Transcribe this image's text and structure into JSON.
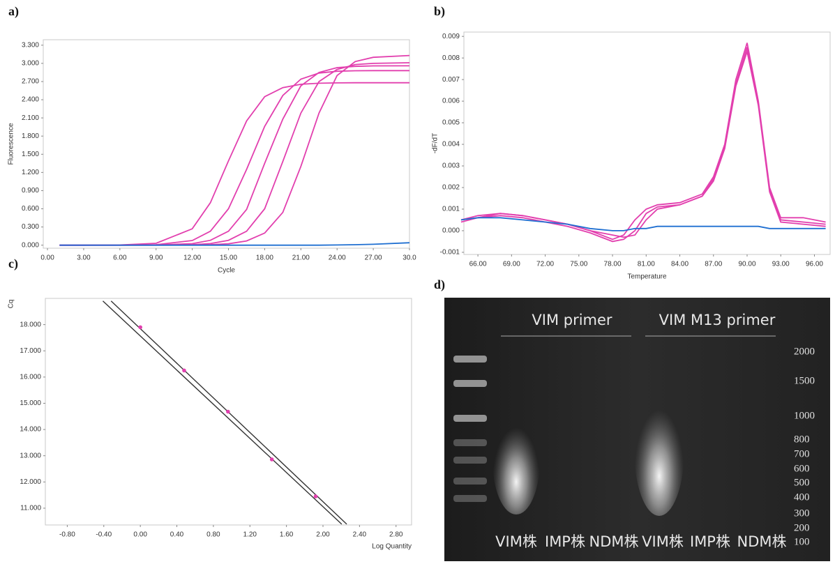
{
  "chart_data": [
    {
      "type": "line",
      "panel_label": "a)",
      "xlabel": "Cycle",
      "ylabel": "Fluorescence",
      "x": [
        1,
        3,
        6,
        9,
        12,
        13.5,
        15,
        16.5,
        18,
        19.5,
        21,
        22.5,
        24,
        25.5,
        27,
        30
      ],
      "series": [
        {
          "color": "#e23fae",
          "values": [
            0,
            0,
            0.003,
            0.03,
            0.27,
            0.7,
            1.39,
            2.05,
            2.45,
            2.6,
            2.655,
            2.672,
            2.678,
            2.68,
            2.68,
            2.68
          ]
        },
        {
          "color": "#e23fae",
          "values": [
            0,
            0,
            0.001,
            0.008,
            0.077,
            0.23,
            0.6,
            1.25,
            1.96,
            2.47,
            2.74,
            2.84,
            2.87,
            2.878,
            2.88,
            2.88
          ]
        },
        {
          "color": "#e23fae",
          "values": [
            0,
            0,
            0,
            0.003,
            0.025,
            0.08,
            0.23,
            0.59,
            1.35,
            2.08,
            2.63,
            2.85,
            2.93,
            2.95,
            2.958,
            2.96
          ]
        },
        {
          "color": "#e23fae",
          "values": [
            0,
            0,
            0,
            0.001,
            0.008,
            0.026,
            0.08,
            0.23,
            0.6,
            1.38,
            2.18,
            2.7,
            2.9,
            2.98,
            3.0,
            3.01
          ]
        },
        {
          "color": "#e23fae",
          "values": [
            0,
            0,
            0,
            0,
            0.002,
            0.007,
            0.022,
            0.07,
            0.2,
            0.54,
            1.3,
            2.18,
            2.8,
            3.03,
            3.1,
            3.13
          ]
        },
        {
          "color": "#1f6fd1",
          "values": [
            0,
            0,
            0,
            0,
            0,
            0,
            0,
            0,
            0,
            0,
            0,
            0,
            0.003,
            0.008,
            0.015,
            0.04
          ]
        }
      ],
      "xlim": [
        -0.35,
        30
      ],
      "ylim": [
        -0.05,
        3.39
      ],
      "xticks": [
        {
          "value": 0,
          "label": "0.00"
        },
        {
          "value": 3,
          "label": "3.00"
        },
        {
          "value": 6,
          "label": "6.00"
        },
        {
          "value": 9,
          "label": "9.00"
        },
        {
          "value": 12,
          "label": "12.00"
        },
        {
          "value": 15,
          "label": "15.00"
        },
        {
          "value": 18,
          "label": "18.00"
        },
        {
          "value": 21,
          "label": "21.00"
        },
        {
          "value": 24,
          "label": "24.00"
        },
        {
          "value": 27,
          "label": "27.00"
        },
        {
          "value": 30,
          "label": "30.0"
        }
      ],
      "yticks": [
        {
          "value": 0,
          "label": "0.000"
        },
        {
          "value": 0.3,
          "label": "0.300"
        },
        {
          "value": 0.6,
          "label": "0.600"
        },
        {
          "value": 0.9,
          "label": "0.900"
        },
        {
          "value": 1.2,
          "label": "1.200"
        },
        {
          "value": 1.5,
          "label": "1.500"
        },
        {
          "value": 1.8,
          "label": "1.800"
        },
        {
          "value": 2.1,
          "label": "2.100"
        },
        {
          "value": 2.4,
          "label": "2.400"
        },
        {
          "value": 2.7,
          "label": "2.700"
        },
        {
          "value": 3.0,
          "label": "3.000"
        },
        {
          "value": 3.3,
          "label": "3.300"
        }
      ]
    },
    {
      "type": "line",
      "panel_label": "b)",
      "xlabel": "Temperature",
      "ylabel": "-dF/dT",
      "x": [
        64.5,
        66,
        68,
        70,
        72,
        74,
        76,
        78,
        79,
        80,
        81,
        82,
        84,
        86,
        87,
        88,
        89,
        90,
        91,
        92,
        93,
        95,
        97
      ],
      "series": [
        {
          "color": "#e23fae",
          "values": [
            0.0005,
            0.0006,
            0.0008,
            0.0007,
            0.0005,
            0.0003,
            0.0,
            -0.0004,
            -0.0002,
            0.0005,
            0.001,
            0.0012,
            0.0013,
            0.0017,
            0.0025,
            0.004,
            0.007,
            0.0087,
            0.006,
            0.002,
            0.0006,
            0.0006,
            0.0004
          ]
        },
        {
          "color": "#e23fae",
          "values": [
            0.0004,
            0.0006,
            0.0007,
            0.0006,
            0.0004,
            0.0002,
            -0.0001,
            -0.0005,
            -0.0004,
            0.0,
            0.0008,
            0.0011,
            0.0012,
            0.0016,
            0.0023,
            0.0038,
            0.0067,
            0.0083,
            0.0058,
            0.0018,
            0.0004,
            0.0003,
            0.0002
          ]
        },
        {
          "color": "#e23fae",
          "values": [
            0.0005,
            0.0007,
            0.0008,
            0.0007,
            0.0005,
            0.0003,
            0.0,
            -0.0002,
            -0.0003,
            -0.0002,
            0.0005,
            0.001,
            0.0012,
            0.0016,
            0.0024,
            0.0039,
            0.0068,
            0.0085,
            0.0059,
            0.0019,
            0.0005,
            0.0004,
            0.0003
          ]
        },
        {
          "color": "#1f6fd1",
          "values": [
            0.0005,
            0.0006,
            0.0006,
            0.0005,
            0.0004,
            0.0003,
            0.0001,
            0.0,
            0.0,
            0.0001,
            0.0001,
            0.0002,
            0.0002,
            0.0002,
            0.0002,
            0.0002,
            0.0002,
            0.0002,
            0.0002,
            0.0001,
            0.0001,
            0.0001,
            0.0001
          ]
        }
      ],
      "xlim": [
        64.75,
        97.4
      ],
      "ylim": [
        -0.0011,
        0.0092
      ],
      "xticks": [
        {
          "value": 66,
          "label": "66.00"
        },
        {
          "value": 69,
          "label": "69.00"
        },
        {
          "value": 72,
          "label": "72.00"
        },
        {
          "value": 75,
          "label": "75.00"
        },
        {
          "value": 78,
          "label": "78.00"
        },
        {
          "value": 81,
          "label": "81.00"
        },
        {
          "value": 84,
          "label": "84.00"
        },
        {
          "value": 87,
          "label": "87.00"
        },
        {
          "value": 90,
          "label": "90.00"
        },
        {
          "value": 93,
          "label": "93.00"
        },
        {
          "value": 96,
          "label": "96.00"
        }
      ],
      "yticks": [
        -0.001,
        {
          "value": 0,
          "label": "0.000"
        },
        0.001,
        0.002,
        0.003,
        0.004,
        0.005,
        0.006,
        0.007,
        0.008,
        0.009
      ]
    },
    {
      "type": "scatter",
      "panel_label": "c)",
      "xlabel": "Log Quantity",
      "ylabel": "Cq",
      "x": [
        0,
        0.48,
        0.96,
        1.44,
        1.92
      ],
      "values": [
        17.9,
        16.25,
        14.68,
        12.86,
        11.45
      ],
      "color": "#e23fae",
      "fit_lines": [
        {
          "color": "#333333",
          "x": [
            -0.41,
            2.205
          ],
          "values": [
            18.9,
            10.39
          ]
        },
        {
          "color": "#333333",
          "x": [
            -0.32,
            2.26
          ],
          "values": [
            18.9,
            10.39
          ]
        }
      ],
      "xlim": [
        -1.04,
        2.97
      ],
      "ylim": [
        10.36,
        19.0
      ],
      "xticks": [
        {
          "value": -0.8,
          "label": "-0.80"
        },
        {
          "value": -0.4,
          "label": "-0.40"
        },
        {
          "value": 0,
          "label": "0.00"
        },
        {
          "value": 0.4,
          "label": "0.40"
        },
        {
          "value": 0.8,
          "label": "0.80"
        },
        {
          "value": 1.2,
          "label": "1.20"
        },
        {
          "value": 1.6,
          "label": "1.60"
        },
        {
          "value": 2.0,
          "label": "2.00"
        },
        {
          "value": 2.4,
          "label": "2.40"
        },
        {
          "value": 2.8,
          "label": "2.80"
        }
      ],
      "yticks": [
        {
          "value": 11,
          "label": "11.000"
        },
        {
          "value": 12,
          "label": "12.000"
        },
        {
          "value": 13,
          "label": "13.000"
        },
        {
          "value": 14,
          "label": "14.000"
        },
        {
          "value": 15,
          "label": "15.000"
        },
        {
          "value": 16,
          "label": "16.000"
        },
        {
          "value": 17,
          "label": "17.000"
        },
        {
          "value": 18,
          "label": "18.000"
        }
      ]
    }
  ],
  "gel": {
    "panel_label": "d)",
    "groups": [
      "VIM primer",
      "VIM M13 primer"
    ],
    "lanes": [
      "VIM株",
      "IMP株",
      "NDM株",
      "VIM株",
      "IMP株",
      "NDM株"
    ],
    "ladder_sizes": [
      2000,
      1500,
      1000,
      800,
      700,
      600,
      500,
      400,
      300,
      200,
      100
    ]
  }
}
